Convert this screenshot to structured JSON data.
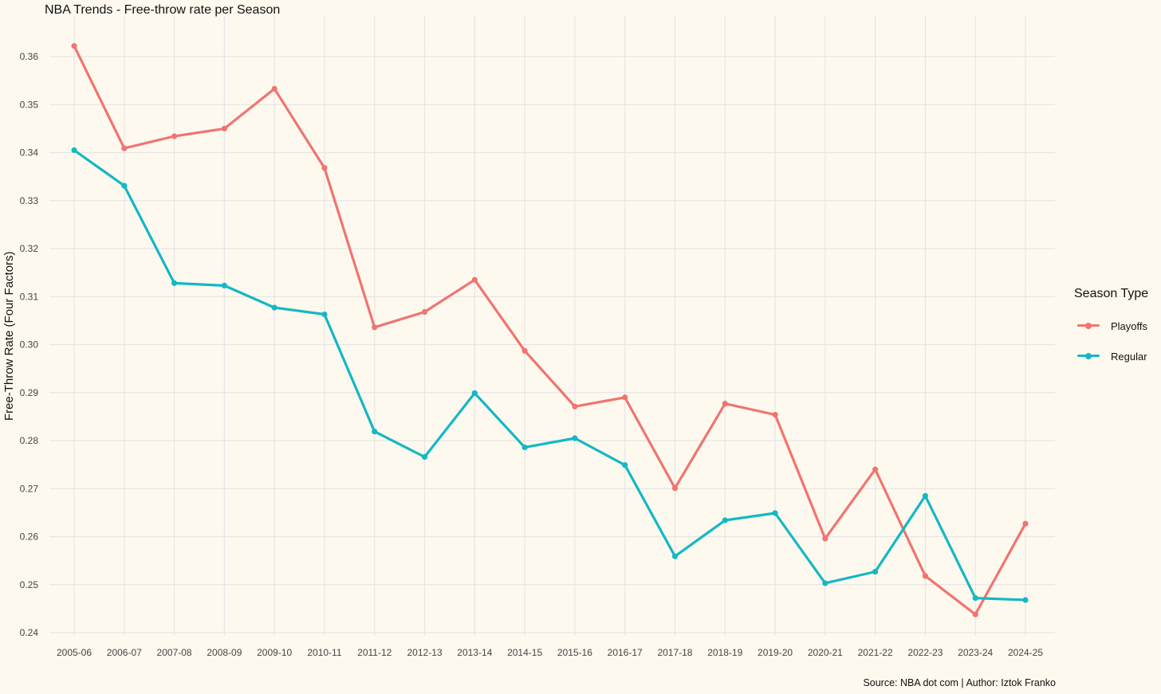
{
  "chart_data": {
    "type": "line",
    "title": "NBA Trends - Free-throw rate per Season",
    "xlabel": "",
    "ylabel": "Free-Throw Rate (Four Factors)",
    "categories": [
      "2005-06",
      "2006-07",
      "2007-08",
      "2008-09",
      "2009-10",
      "2010-11",
      "2011-12",
      "2012-13",
      "2013-14",
      "2014-15",
      "2015-16",
      "2016-17",
      "2017-18",
      "2018-19",
      "2019-20",
      "2020-21",
      "2021-22",
      "2022-23",
      "2023-24",
      "2024-25"
    ],
    "yticks": [
      "0.24",
      "0.25",
      "0.26",
      "0.27",
      "0.28",
      "0.29",
      "0.30",
      "0.31",
      "0.32",
      "0.33",
      "0.34",
      "0.35",
      "0.36"
    ],
    "ylim": [
      0.239,
      0.365
    ],
    "grid": true,
    "legend": {
      "title": "Season Type",
      "position": "right"
    },
    "series": [
      {
        "name": "Playoffs",
        "color": "#f07470",
        "values": [
          0.3622,
          0.3409,
          0.3434,
          0.345,
          0.3533,
          0.3368,
          0.3036,
          0.3068,
          0.3135,
          0.2987,
          0.2871,
          0.289,
          0.2701,
          0.2877,
          0.2854,
          0.2596,
          0.274,
          0.2518,
          0.2438,
          0.2627
        ]
      },
      {
        "name": "Regular",
        "color": "#14b8c4",
        "values": [
          0.3405,
          0.3331,
          0.3128,
          0.3123,
          0.3077,
          0.3063,
          0.2819,
          0.2766,
          0.2899,
          0.2786,
          0.2805,
          0.2749,
          0.2559,
          0.2634,
          0.2649,
          0.2503,
          0.2527,
          0.2685,
          0.2472,
          0.2468
        ]
      }
    ],
    "caption": "Source: NBA dot com | Author: Iztok Franko"
  }
}
